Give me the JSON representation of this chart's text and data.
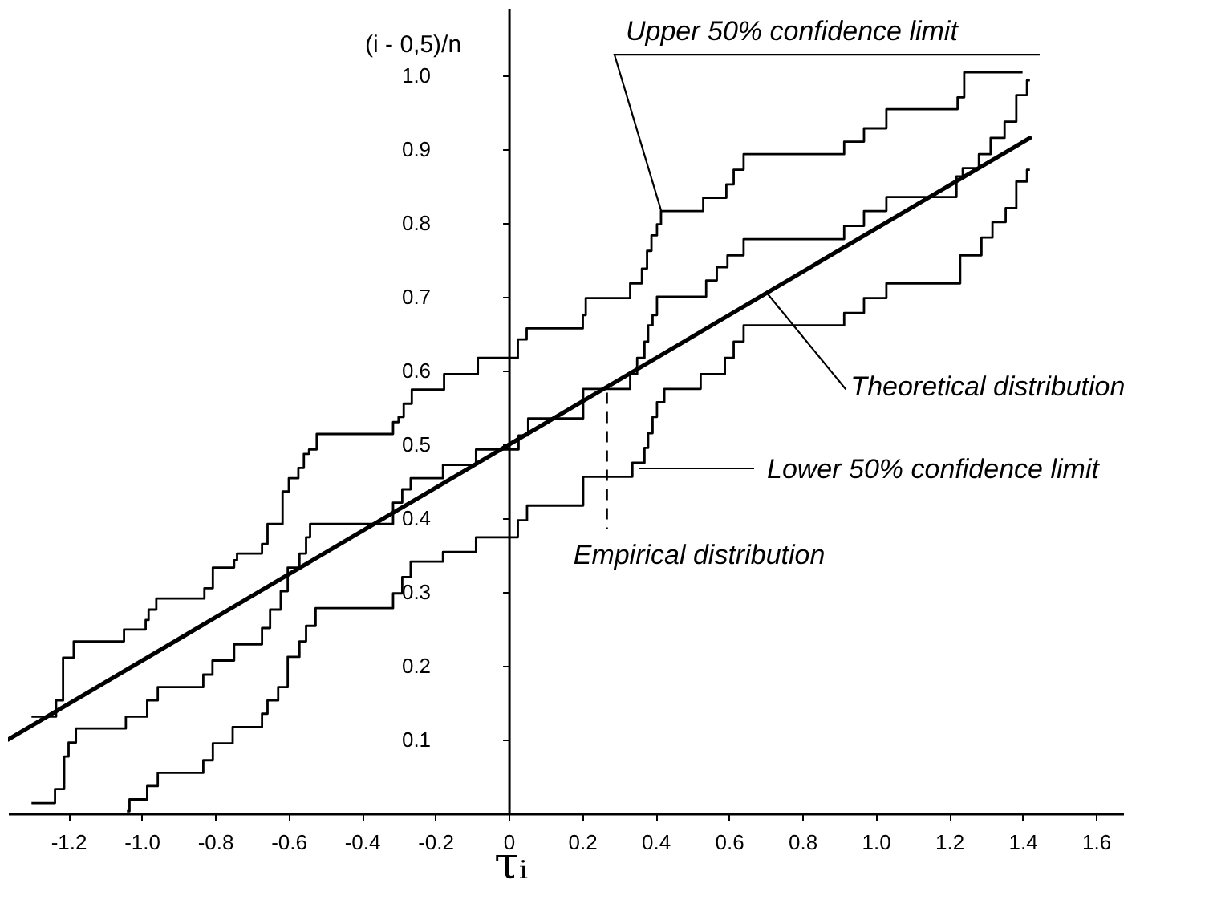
{
  "chart_data": {
    "type": "step",
    "xlabel": "τᵢ",
    "ylabel": "(i - 0,5)/n",
    "xlim": [
      -1.364,
      1.674
    ],
    "ylim": [
      0,
      1.091
    ],
    "xticks": [
      {
        "value": -1.2,
        "label": "-1.2"
      },
      {
        "value": -1,
        "label": "-1.0"
      },
      {
        "value": -0.8,
        "label": "-0.8"
      },
      {
        "value": -0.6,
        "label": "-0.6"
      },
      {
        "value": -0.4,
        "label": "-0.4"
      },
      {
        "value": -0.2,
        "label": "-0.2"
      },
      0,
      0.2,
      0.4,
      0.6,
      0.8,
      {
        "value": 1,
        "label": "1.0"
      },
      1.2,
      1.4,
      1.6
    ],
    "yticks": [
      {
        "value": 0.1,
        "label": "0.1"
      },
      {
        "value": 0.2,
        "label": "0.2"
      },
      {
        "value": 0.3,
        "label": "0.3"
      },
      {
        "value": 0.4,
        "label": "0.4"
      },
      {
        "value": 0.5,
        "label": "0.5"
      },
      {
        "value": 0.6,
        "label": "0.6"
      },
      {
        "value": 0.7,
        "label": "0.7"
      },
      {
        "value": 0.8,
        "label": "0.8"
      },
      {
        "value": 0.9,
        "label": "0.9"
      },
      {
        "value": 1.0,
        "label": "1.0"
      }
    ],
    "series": [
      {
        "color": "#000000",
        "x": [
          -1.3,
          -1.233,
          -1.214,
          -1.185,
          -1.048,
          -0.989,
          -0.981,
          -0.96,
          -0.829,
          -0.806,
          -0.748,
          -0.74,
          -0.672,
          -0.657,
          -0.616,
          -0.599,
          -0.573,
          -0.558,
          -0.544,
          -0.523,
          -0.315,
          -0.3,
          -0.286,
          -0.264,
          -0.176,
          -0.084,
          0.025,
          0.049,
          0.202,
          0.21,
          0.331,
          0.363,
          0.377,
          0.389,
          0.404,
          0.415,
          0.53,
          0.593,
          0.613,
          0.64,
          0.914,
          0.968,
          1.029,
          1.223,
          1.241,
          1.4
        ],
        "values": [
          0.131,
          0.153,
          0.211,
          0.233,
          0.249,
          0.262,
          0.276,
          0.291,
          0.305,
          0.333,
          0.343,
          0.352,
          0.365,
          0.392,
          0.436,
          0.454,
          0.468,
          0.487,
          0.493,
          0.514,
          0.53,
          0.537,
          0.555,
          0.574,
          0.595,
          0.617,
          0.642,
          0.657,
          0.675,
          0.698,
          0.718,
          0.738,
          0.762,
          0.783,
          0.798,
          0.816,
          0.834,
          0.852,
          0.872,
          0.893,
          0.91,
          0.928,
          0.954,
          0.97,
          1.004,
          1.004
        ]
      },
      {
        "color": "#000000",
        "x": [
          -1.3,
          -1.236,
          -1.211,
          -1.199,
          -1.179,
          -1.043,
          -0.985,
          -0.956,
          -0.832,
          -0.807,
          -0.748,
          -0.672,
          -0.65,
          -0.621,
          -0.602,
          -0.57,
          -0.552,
          -0.541,
          -0.315,
          -0.29,
          -0.267,
          -0.179,
          -0.089,
          0.027,
          0.053,
          0.203,
          0.331,
          0.35,
          0.37,
          0.38,
          0.392,
          0.404,
          0.538,
          0.567,
          0.596,
          0.64,
          0.914,
          0.968,
          1.029,
          1.22,
          1.237,
          1.281,
          1.313,
          1.351,
          1.383,
          1.412,
          1.42
        ],
        "values": [
          0.014,
          0.033,
          0.077,
          0.096,
          0.115,
          0.131,
          0.153,
          0.171,
          0.188,
          0.207,
          0.229,
          0.251,
          0.276,
          0.301,
          0.333,
          0.352,
          0.374,
          0.392,
          0.421,
          0.439,
          0.454,
          0.472,
          0.493,
          0.512,
          0.535,
          0.575,
          0.595,
          0.617,
          0.639,
          0.661,
          0.675,
          0.7,
          0.722,
          0.74,
          0.756,
          0.778,
          0.796,
          0.816,
          0.835,
          0.863,
          0.874,
          0.893,
          0.915,
          0.937,
          0.973,
          0.993,
          0.993
        ]
      },
      {
        "color": "#000000",
        "x": [
          -1.04,
          -1.033,
          -0.985,
          -0.956,
          -0.832,
          -0.806,
          -0.752,
          -0.672,
          -0.657,
          -0.628,
          -0.602,
          -0.57,
          -0.552,
          -0.526,
          -0.315,
          -0.29,
          -0.267,
          -0.179,
          -0.089,
          0.025,
          0.05,
          0.203,
          0.337,
          0.37,
          0.38,
          0.392,
          0.404,
          0.424,
          0.523,
          0.589,
          0.613,
          0.64,
          0.914,
          0.968,
          1.029,
          1.23,
          1.288,
          1.318,
          1.354,
          1.383,
          1.412,
          1.42
        ],
        "values": [
          0.003,
          0.019,
          0.037,
          0.055,
          0.072,
          0.095,
          0.117,
          0.135,
          0.153,
          0.171,
          0.212,
          0.233,
          0.254,
          0.278,
          0.298,
          0.32,
          0.341,
          0.354,
          0.374,
          0.397,
          0.417,
          0.456,
          0.475,
          0.495,
          0.515,
          0.537,
          0.557,
          0.575,
          0.595,
          0.617,
          0.639,
          0.661,
          0.678,
          0.698,
          0.718,
          0.756,
          0.78,
          0.801,
          0.82,
          0.856,
          0.872,
          0.872
        ]
      },
      {
        "type": "line",
        "color": "#000000",
        "x": [
          -1.364,
          1.42
        ],
        "values": [
          0.1,
          0.915
        ]
      }
    ],
    "annotations": [
      {
        "text": "Upper 50% confidence limit",
        "x": 0.415,
        "y": 0.817
      },
      {
        "text": "Theoretical distribution",
        "x": 0.7,
        "y": 0.707
      },
      "Lower 50% confidence limit",
      {
        "text": "Empirical distribution",
        "x": 0.268,
        "y": 0.57
      }
    ]
  }
}
